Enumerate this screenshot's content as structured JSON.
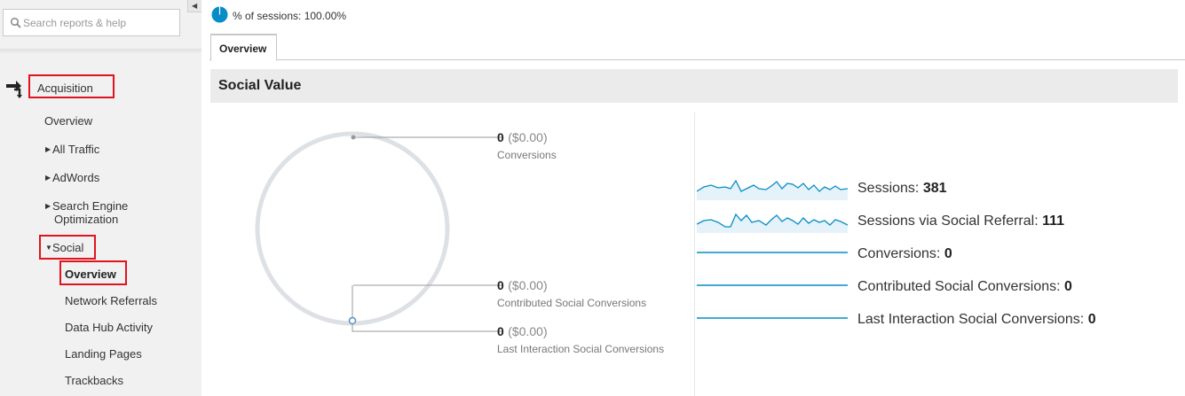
{
  "search": {
    "placeholder": "Search reports & help"
  },
  "sidebar": {
    "acquisition_label": "Acquisition",
    "items": [
      {
        "label": "Overview"
      },
      {
        "label": "All Traffic"
      },
      {
        "label": "AdWords"
      },
      {
        "label": "Search Engine"
      },
      {
        "label": "Optimization"
      },
      {
        "label": "Social"
      }
    ],
    "social_items": [
      {
        "label": "Overview"
      },
      {
        "label": "Network Referrals"
      },
      {
        "label": "Data Hub Activity"
      },
      {
        "label": "Landing Pages"
      },
      {
        "label": "Trackbacks"
      }
    ]
  },
  "header": {
    "sessions_pct_label": "% of sessions: 100.00%"
  },
  "tabs": [
    {
      "label": "Overview"
    }
  ],
  "section": {
    "title": "Social Value"
  },
  "diagram": {
    "conversions": {
      "value": "0",
      "money": "($0.00)",
      "label": "Conversions"
    },
    "contributed": {
      "value": "0",
      "money": "($0.00)",
      "label": "Contributed Social Conversions"
    },
    "last_interaction": {
      "value": "0",
      "money": "($0.00)",
      "label": "Last Interaction Social Conversions"
    }
  },
  "sparklines": [
    {
      "label": "Sessions:",
      "value": "381"
    },
    {
      "label": "Sessions via Social Referral:",
      "value": "111"
    },
    {
      "label": "Conversions:",
      "value": "0"
    },
    {
      "label": "Contributed Social Conversions:",
      "value": "0"
    },
    {
      "label": "Last Interaction Social Conversions:",
      "value": "0"
    }
  ],
  "colors": {
    "accent": "#058dc7",
    "highlight": "#e0141f",
    "ring": "#dde1e5"
  }
}
